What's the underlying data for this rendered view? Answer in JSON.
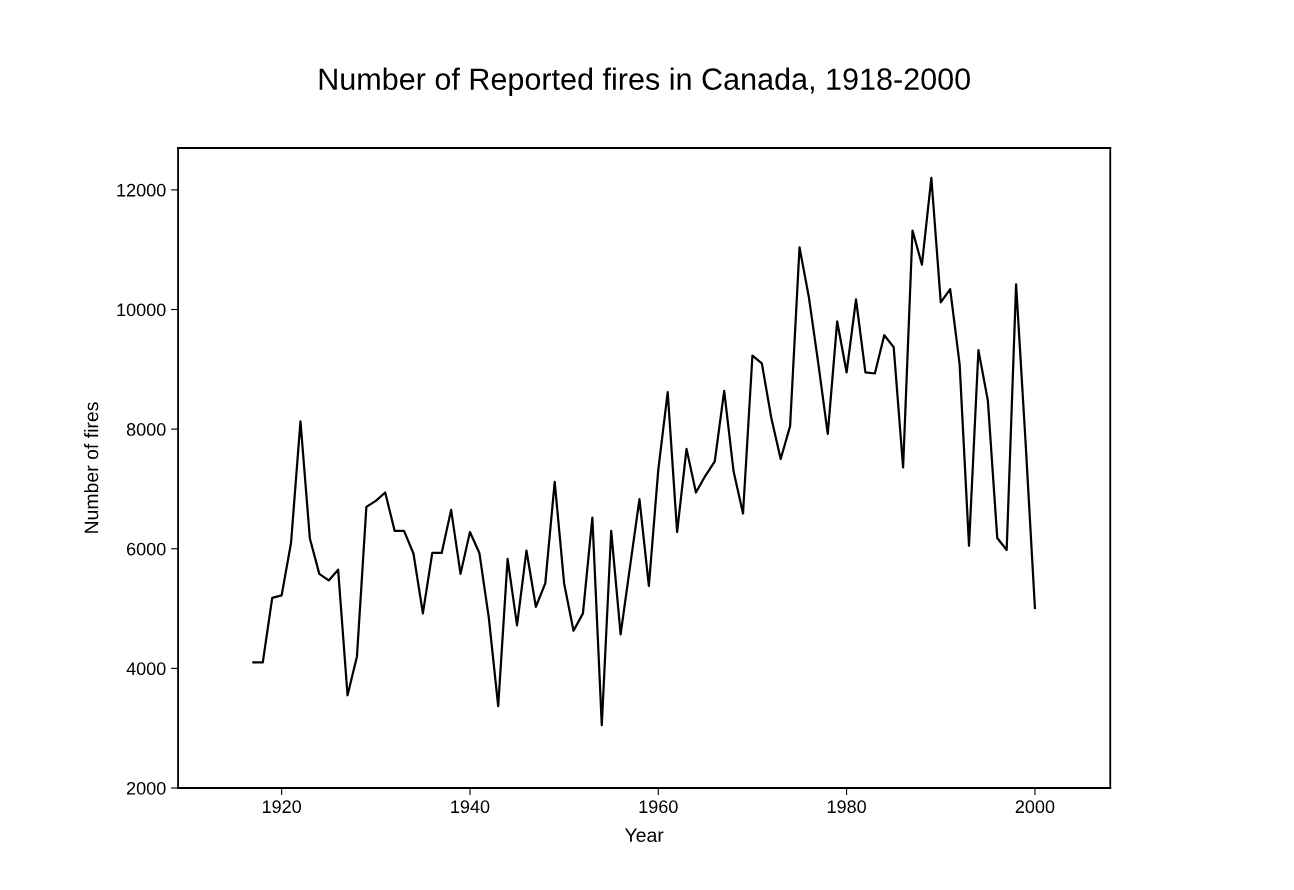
{
  "chart_data": {
    "type": "line",
    "title": "Number of Reported fires in Canada, 1918-2000",
    "xlabel": "Year",
    "ylabel": "Number of fires",
    "x": [
      1917,
      1918,
      1919,
      1920,
      1921,
      1922,
      1923,
      1924,
      1925,
      1926,
      1927,
      1928,
      1929,
      1930,
      1931,
      1932,
      1933,
      1934,
      1935,
      1936,
      1937,
      1938,
      1939,
      1940,
      1941,
      1942,
      1943,
      1944,
      1945,
      1946,
      1947,
      1948,
      1949,
      1950,
      1951,
      1952,
      1953,
      1954,
      1955,
      1956,
      1957,
      1958,
      1959,
      1960,
      1961,
      1962,
      1963,
      1964,
      1965,
      1966,
      1967,
      1968,
      1969,
      1970,
      1971,
      1972,
      1973,
      1974,
      1975,
      1976,
      1977,
      1978,
      1979,
      1980,
      1981,
      1982,
      1983,
      1984,
      1985,
      1986,
      1987,
      1988,
      1989,
      1990,
      1991,
      1992,
      1993,
      1994,
      1995,
      1996,
      1997,
      1998,
      1999,
      2000
    ],
    "series": [
      {
        "color": "#000000",
        "values": [
          4100,
          4100,
          5180,
          5220,
          6100,
          8130,
          6170,
          5580,
          5470,
          5650,
          3550,
          4200,
          6700,
          6800,
          6940,
          6300,
          6300,
          5920,
          4920,
          5930,
          5930,
          6650,
          5580,
          6280,
          5930,
          4850,
          3370,
          5830,
          4720,
          5970,
          5030,
          5420,
          7120,
          5420,
          4630,
          4920,
          6520,
          3050,
          6300,
          4570,
          5700,
          6830,
          5380,
          7320,
          8620,
          6280,
          7670,
          6940,
          7220,
          7460,
          8640,
          7290,
          6590,
          9230,
          9100,
          8190,
          7500,
          8050,
          11040,
          10200,
          9090,
          7920,
          9800,
          8950,
          10170,
          8950,
          8930,
          9570,
          9370,
          7360,
          11320,
          10750,
          12200,
          10120,
          10340,
          9090,
          6050,
          9320,
          8480,
          6180,
          5980,
          10420,
          7800,
          5010
        ]
      }
    ],
    "xlim": [
      1909,
      2008
    ],
    "xticks": [
      1920,
      1940,
      1960,
      1980,
      2000
    ],
    "ylim": [
      2000,
      12700
    ],
    "yticks": [
      2000,
      4000,
      6000,
      8000,
      10000,
      12000
    ],
    "grid": false,
    "marker": "none",
    "line_style": "solid"
  }
}
